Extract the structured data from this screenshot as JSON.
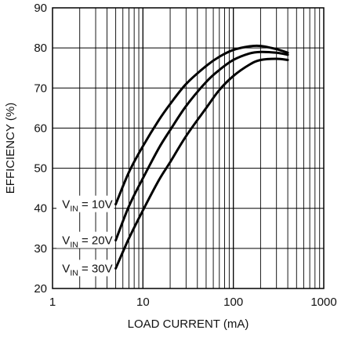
{
  "chart_data": {
    "type": "line",
    "xlabel": "LOAD CURRENT (mA)",
    "ylabel": "EFFICIENCY (%)",
    "x_scale": "log",
    "xlim": [
      1,
      1000
    ],
    "ylim": [
      20,
      90
    ],
    "grid": true,
    "x_ticks": [
      "1",
      "10",
      "100",
      "1000"
    ],
    "y_ticks": [
      "20",
      "30",
      "40",
      "50",
      "60",
      "70",
      "80",
      "90"
    ],
    "series": [
      {
        "label_main": "V",
        "label_sub": "IN",
        "label_tail": " = 10V",
        "x": [
          5,
          7,
          10,
          15,
          20,
          30,
          50,
          70,
          100,
          150,
          200,
          300,
          400
        ],
        "y": [
          41,
          49,
          55.5,
          62,
          66,
          71,
          75.5,
          77.8,
          79.5,
          80.4,
          80.5,
          79.7,
          78.8
        ]
      },
      {
        "label_main": "V",
        "label_sub": "IN",
        "label_tail": " = 20V",
        "x": [
          5,
          7,
          10,
          15,
          20,
          30,
          50,
          70,
          100,
          150,
          200,
          300,
          400
        ],
        "y": [
          32,
          40.5,
          47.5,
          55,
          59.5,
          65.5,
          71.5,
          74.5,
          77,
          78.6,
          79,
          78.8,
          78.3
        ]
      },
      {
        "label_main": "V",
        "label_sub": "IN",
        "label_tail": " = 30V",
        "x": [
          5,
          7,
          10,
          15,
          20,
          30,
          50,
          70,
          100,
          150,
          200,
          300,
          400
        ],
        "y": [
          25,
          32.5,
          39.5,
          47,
          51.5,
          58,
          65,
          69.5,
          73,
          75.8,
          77,
          77.3,
          77
        ]
      }
    ]
  }
}
